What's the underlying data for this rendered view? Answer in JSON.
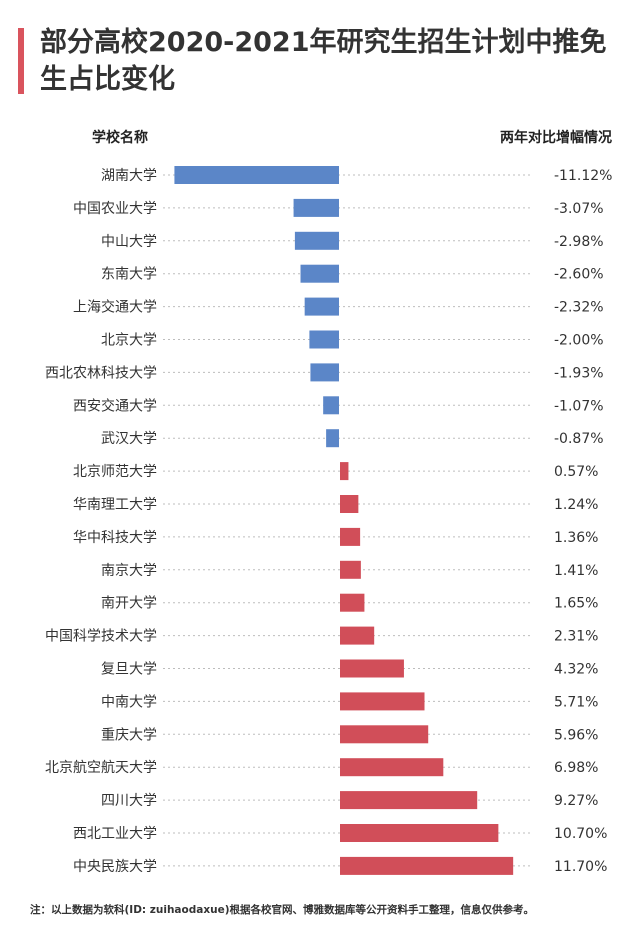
{
  "title": "部分高校2020-2021年研究生招生计划中推免生占比变化",
  "header_left": "学校名称",
  "header_right": "两年对比增幅情况",
  "footnote": "注：以上数据为软科(ID: zuihaodaxue)根据各校官网、博雅数据库等公开资料手工整理，信息仅供参考。",
  "colors": {
    "negative": "#5b86c8",
    "positive": "#d14e59",
    "accent": "#d9545d"
  },
  "chart_data": {
    "type": "bar",
    "orientation": "horizontal",
    "unit": "%",
    "categories": [
      "湖南大学",
      "中国农业大学",
      "中山大学",
      "东南大学",
      "上海交通大学",
      "北京大学",
      "西北农林科技大学",
      "西安交通大学",
      "武汉大学",
      "北京师范大学",
      "华南理工大学",
      "华中科技大学",
      "南京大学",
      "南开大学",
      "中国科学技术大学",
      "复旦大学",
      "中南大学",
      "重庆大学",
      "北京航空航天大学",
      "四川大学",
      "西北工业大学",
      "中央民族大学"
    ],
    "values": [
      -11.12,
      -3.07,
      -2.98,
      -2.6,
      -2.32,
      -2.0,
      -1.93,
      -1.07,
      -0.87,
      0.57,
      1.24,
      1.36,
      1.41,
      1.65,
      2.31,
      4.32,
      5.71,
      5.96,
      6.98,
      9.27,
      10.7,
      11.7
    ],
    "value_labels": [
      "-11.12%",
      "-3.07%",
      "-2.98%",
      "-2.60%",
      "-2.32%",
      "-2.00%",
      "-1.93%",
      "-1.07%",
      "-0.87%",
      "0.57%",
      "1.24%",
      "1.36%",
      "1.41%",
      "1.65%",
      "2.31%",
      "4.32%",
      "5.71%",
      "5.96%",
      "6.98%",
      "9.27%",
      "10.70%",
      "11.70%"
    ]
  }
}
